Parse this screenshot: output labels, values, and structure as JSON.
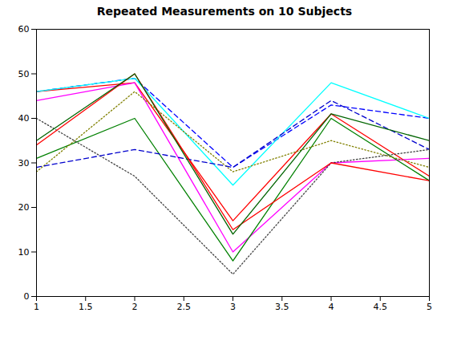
{
  "chart_data": {
    "type": "line",
    "title": "Repeated Measurements on 10 Subjects",
    "x": [
      1,
      2,
      3,
      4,
      5
    ],
    "series": [
      {
        "color": "#0000FF",
        "line_style": "dashed",
        "values": [
          46,
          49,
          29,
          43,
          40
        ]
      },
      {
        "color": "#FF0000",
        "line_style": "solid",
        "values": [
          46,
          48,
          17,
          41,
          27
        ]
      },
      {
        "color": "#00FFFF",
        "line_style": "solid",
        "values": [
          46,
          49,
          25,
          48,
          40
        ]
      },
      {
        "color": "#FF00FF",
        "line_style": "solid",
        "values": [
          44,
          48,
          10,
          30,
          31
        ]
      },
      {
        "color": "#008000",
        "line_style": "solid",
        "values": [
          31,
          40,
          8,
          40,
          26
        ]
      },
      {
        "color": "#808000",
        "line_style": "dotted",
        "values": [
          28,
          46,
          28,
          35,
          29
        ]
      },
      {
        "color": "#404040",
        "line_style": "dotted",
        "values": [
          40,
          27,
          5,
          30,
          33
        ]
      },
      {
        "color": "#0000CD",
        "line_style": "dashed",
        "values": [
          29,
          33,
          29,
          44,
          33
        ]
      },
      {
        "color": "#FF0000",
        "line_style": "solid",
        "values": [
          34,
          50,
          15,
          30,
          26
        ]
      },
      {
        "color": "#006400",
        "line_style": "solid",
        "values": [
          35,
          50,
          14,
          41,
          35
        ]
      }
    ],
    "xlim": [
      1,
      5
    ],
    "ylim": [
      0,
      60
    ],
    "xticks": [
      1,
      1.5,
      2,
      2.5,
      3,
      3.5,
      4,
      4.5,
      5
    ],
    "yticks": [
      0,
      10,
      20,
      30,
      40,
      50,
      60
    ],
    "grid": false
  }
}
